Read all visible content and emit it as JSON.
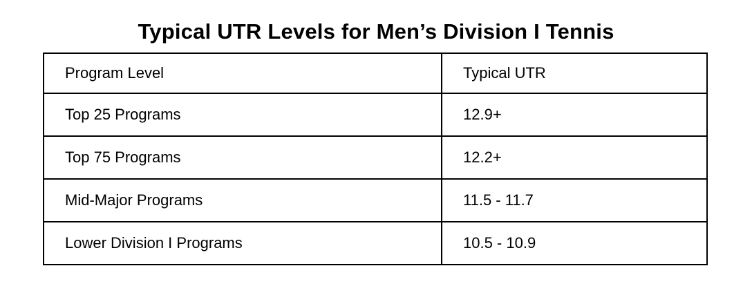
{
  "title": "Typical UTR Levels for Men’s Division I Tennis",
  "table": {
    "headers": [
      "Program Level",
      "Typical UTR"
    ],
    "rows": [
      [
        "Top 25 Programs",
        "12.9+"
      ],
      [
        "Top 75 Programs",
        "12.2+"
      ],
      [
        "Mid-Major Programs",
        "11.5 - 11.7"
      ],
      [
        "Lower Division I Programs",
        "10.5 - 10.9"
      ]
    ]
  },
  "colors": {
    "background": "#ffffff",
    "text": "#000000",
    "border": "#000000"
  }
}
